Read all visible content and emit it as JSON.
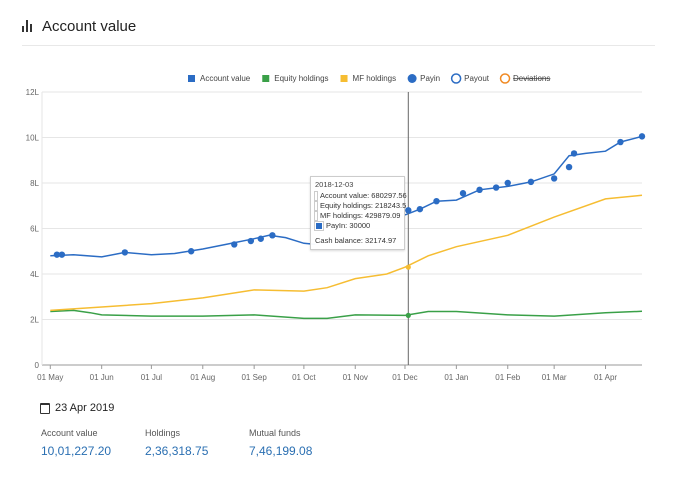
{
  "header": {
    "title": "Account value",
    "icon": "bar-chart-icon"
  },
  "summary": {
    "date": "23 Apr 2019",
    "items": [
      {
        "label": "Account value",
        "value": "10,01,227.20"
      },
      {
        "label": "Holdings",
        "value": "2,36,318.75"
      },
      {
        "label": "Mutual funds",
        "value": "7,46,199.08"
      }
    ]
  },
  "tooltip": {
    "date": "2018-12-03",
    "rows": [
      {
        "label": "Account value: 680297.56",
        "color": "#2b6cc4"
      },
      {
        "label": "Equity holdings: 218243.5",
        "color": "#3aa048"
      },
      {
        "label": "MF holdings: 429879.09",
        "color": "#f6bd32"
      },
      {
        "label": "PayIn: 30000",
        "color": "#2b6cc4"
      }
    ],
    "cash": "Cash balance: 32174.97"
  },
  "chart_data": {
    "type": "line",
    "title": "",
    "xlabel": "",
    "ylabel": "",
    "ylim": [
      0,
      12
    ],
    "grid": true,
    "legend_position": "top-center",
    "y_ticks": [
      "0",
      "2L",
      "4L",
      "6L",
      "8L",
      "10L",
      "12L"
    ],
    "x_ticks": [
      "01 May",
      "01 Jun",
      "01 Jul",
      "01 Aug",
      "01 Sep",
      "01 Oct",
      "01 Nov",
      "01 Dec",
      "01 Jan",
      "01 Feb",
      "01 Mar",
      "01 Apr"
    ],
    "legend": [
      {
        "name": "Account value",
        "color": "#2b6cc4",
        "marker": "square"
      },
      {
        "name": "Equity holdings",
        "color": "#3aa048",
        "marker": "square"
      },
      {
        "name": "MF holdings",
        "color": "#f6bd32",
        "marker": "square"
      },
      {
        "name": "Payin",
        "color": "#2b6cc4",
        "marker": "dot"
      },
      {
        "name": "Payout",
        "color": "#2b6cc4",
        "marker": "ring"
      },
      {
        "name": "Deviations",
        "color": "#f08a24",
        "marker": "ring",
        "disabled": true
      }
    ],
    "series": [
      {
        "name": "Account value",
        "color": "#2b6cc4",
        "points": [
          [
            "2018-05-01",
            4.8
          ],
          [
            "2018-05-15",
            4.85
          ],
          [
            "2018-06-01",
            4.75
          ],
          [
            "2018-06-15",
            4.95
          ],
          [
            "2018-07-01",
            4.85
          ],
          [
            "2018-07-15",
            4.9
          ],
          [
            "2018-08-01",
            5.1
          ],
          [
            "2018-08-15",
            5.3
          ],
          [
            "2018-09-01",
            5.55
          ],
          [
            "2018-09-10",
            5.7
          ],
          [
            "2018-09-20",
            5.6
          ],
          [
            "2018-10-01",
            5.35
          ],
          [
            "2018-10-08",
            5.3
          ],
          null,
          [
            "2018-12-01",
            6.6
          ],
          [
            "2018-12-10",
            6.85
          ],
          [
            "2018-12-20",
            7.2
          ],
          [
            "2019-01-01",
            7.25
          ],
          [
            "2019-01-15",
            7.7
          ],
          [
            "2019-02-01",
            7.85
          ],
          [
            "2019-02-15",
            8.05
          ],
          [
            "2019-03-01",
            8.4
          ],
          [
            "2019-03-10",
            9.2
          ],
          [
            "2019-03-20",
            9.3
          ],
          [
            "2019-04-01",
            9.4
          ],
          [
            "2019-04-10",
            9.8
          ],
          [
            "2019-04-23",
            10.05
          ]
        ]
      },
      {
        "name": "Equity holdings",
        "color": "#3aa048",
        "points": [
          [
            "2018-05-01",
            2.35
          ],
          [
            "2018-05-15",
            2.4
          ],
          [
            "2018-05-25",
            2.3
          ],
          [
            "2018-06-01",
            2.2
          ],
          [
            "2018-07-01",
            2.15
          ],
          [
            "2018-08-01",
            2.15
          ],
          [
            "2018-09-01",
            2.2
          ],
          [
            "2018-10-01",
            2.05
          ],
          [
            "2018-10-15",
            2.05
          ],
          [
            "2018-11-01",
            2.2
          ],
          [
            "2018-12-01",
            2.18
          ],
          [
            "2018-12-15",
            2.35
          ],
          [
            "2019-01-01",
            2.35
          ],
          [
            "2019-02-01",
            2.2
          ],
          [
            "2019-03-01",
            2.15
          ],
          [
            "2019-04-01",
            2.3
          ],
          [
            "2019-04-23",
            2.36
          ]
        ]
      },
      {
        "name": "MF holdings",
        "color": "#f6bd32",
        "points": [
          [
            "2018-05-01",
            2.4
          ],
          [
            "2018-06-01",
            2.55
          ],
          [
            "2018-07-01",
            2.7
          ],
          [
            "2018-08-01",
            2.95
          ],
          [
            "2018-09-01",
            3.3
          ],
          [
            "2018-10-01",
            3.25
          ],
          [
            "2018-10-15",
            3.4
          ],
          [
            "2018-11-01",
            3.8
          ],
          [
            "2018-11-20",
            4.0
          ],
          [
            "2018-12-01",
            4.3
          ],
          [
            "2018-12-15",
            4.8
          ],
          [
            "2019-01-01",
            5.2
          ],
          [
            "2019-02-01",
            5.7
          ],
          [
            "2019-03-01",
            6.5
          ],
          [
            "2019-04-01",
            7.3
          ],
          [
            "2019-04-23",
            7.46
          ]
        ]
      }
    ],
    "payin_dates": [
      [
        "2018-05-05",
        4.85
      ],
      [
        "2018-05-08",
        4.85
      ],
      [
        "2018-06-15",
        4.95
      ],
      [
        "2018-07-25",
        5.0
      ],
      [
        "2018-08-20",
        5.3
      ],
      [
        "2018-08-30",
        5.45
      ],
      [
        "2018-09-05",
        5.55
      ],
      [
        "2018-09-12",
        5.7
      ],
      [
        "2018-12-03",
        6.8
      ],
      [
        "2018-12-10",
        6.85
      ],
      [
        "2018-12-20",
        7.2
      ],
      [
        "2019-01-05",
        7.55
      ],
      [
        "2019-01-15",
        7.7
      ],
      [
        "2019-01-25",
        7.8
      ],
      [
        "2019-02-01",
        8.0
      ],
      [
        "2019-02-15",
        8.05
      ],
      [
        "2019-03-01",
        8.2
      ],
      [
        "2019-03-10",
        8.7
      ],
      [
        "2019-03-13",
        9.3
      ],
      [
        "2019-04-10",
        9.8
      ],
      [
        "2019-04-23",
        10.05
      ]
    ],
    "highlight_date": "2018-12-03"
  }
}
